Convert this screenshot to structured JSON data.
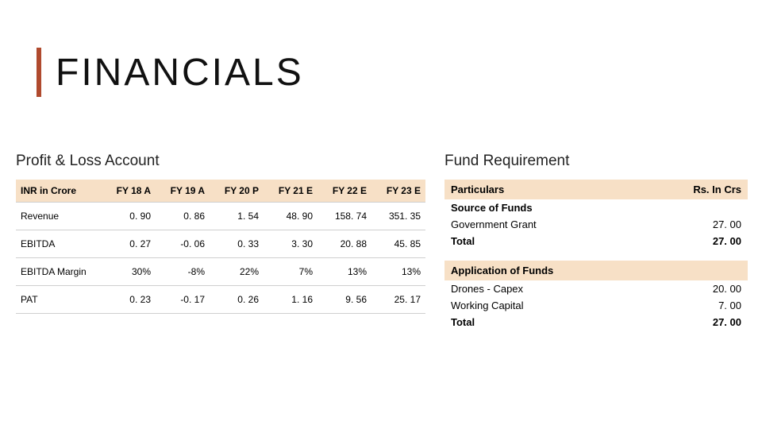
{
  "title": "FINANCIALS",
  "accent_color": "#b04a2e",
  "header_band_color": "#f7e0c6",
  "border_color": "#cfcfcf",
  "pl": {
    "title": "Profit & Loss Account",
    "columns": [
      "INR in Crore",
      "FY 18 A",
      "FY 19 A",
      "FY 20 P",
      "FY 21 E",
      "FY 22 E",
      "FY 23 E"
    ],
    "rows": [
      [
        "Revenue",
        "0. 90",
        "0. 86",
        "1. 54",
        "48. 90",
        "158. 74",
        "351. 35"
      ],
      [
        "EBITDA",
        "0. 27",
        "-0. 06",
        "0. 33",
        "3. 30",
        "20. 88",
        "45. 85"
      ],
      [
        "EBITDA Margin",
        "30%",
        "-8%",
        "22%",
        "7%",
        "13%",
        "13%"
      ],
      [
        "PAT",
        "0. 23",
        "-0. 17",
        "0. 26",
        "1. 16",
        "9. 56",
        "25. 17"
      ]
    ]
  },
  "fr": {
    "title": "Fund Requirement",
    "columns": [
      "Particulars",
      "Rs. In Crs"
    ],
    "section1_title": "Source of Funds",
    "section1_rows": [
      [
        "Government Grant",
        "27. 00"
      ]
    ],
    "section1_total_label": "Total",
    "section1_total_value": "27. 00",
    "section2_title": "Application of Funds",
    "section2_rows": [
      [
        "Drones - Capex",
        "20. 00"
      ],
      [
        "Working Capital",
        "7. 00"
      ]
    ],
    "section2_total_label": "Total",
    "section2_total_value": "27. 00"
  }
}
